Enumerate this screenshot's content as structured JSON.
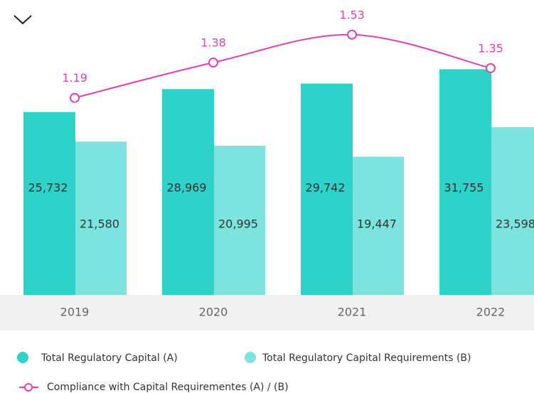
{
  "chart_data": {
    "type": "bar-line",
    "categories": [
      "2019",
      "2020",
      "2021",
      "2022"
    ],
    "series": [
      {
        "name": "Total Regulatory Capital (A)",
        "color": "#2dd3c9",
        "values": [
          25732,
          28969,
          29742,
          31755
        ],
        "value_labels": [
          "25,732",
          "28,969",
          "29,742",
          "31,755"
        ]
      },
      {
        "name": "Total Regulatory Capital Requirements (B)",
        "color": "#7de3de",
        "values": [
          21580,
          20995,
          19447,
          23598
        ],
        "value_labels": [
          "21,580",
          "20,995",
          "19,447",
          "23,598"
        ]
      },
      {
        "name": "Compliance with Capital Requirementes (A) / (B)",
        "color": "#e040b0",
        "axis": "y2",
        "values": [
          1.19,
          1.38,
          1.53,
          1.35
        ]
      }
    ],
    "ylim": [
      0,
      39500
    ],
    "y2lim": [
      0.13,
      1.64
    ]
  }
}
